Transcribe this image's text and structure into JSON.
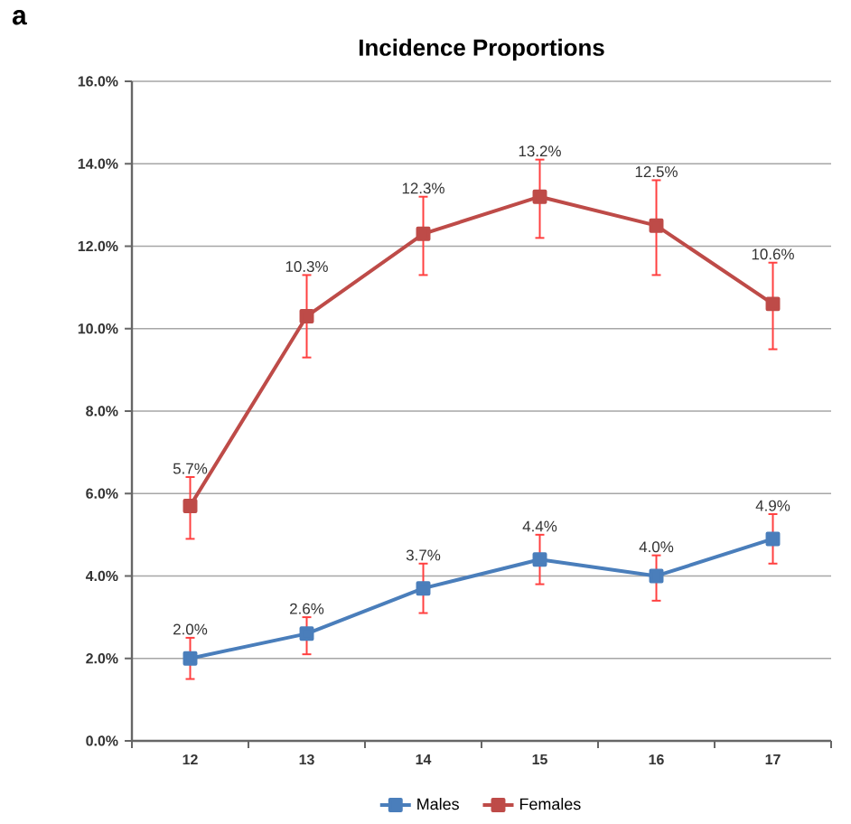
{
  "chart_data": {
    "type": "line",
    "title": "Incidence Proportions",
    "annotations": [
      "a"
    ],
    "categories": [
      "12",
      "13",
      "14",
      "15",
      "16",
      "17"
    ],
    "series": [
      {
        "name": "Males",
        "color": "#4a7ebb",
        "values": [
          2.0,
          2.6,
          3.7,
          4.4,
          4.0,
          4.9
        ],
        "value_labels": [
          "2.0%",
          "2.6%",
          "3.7%",
          "4.4%",
          "4.0%",
          "4.9%"
        ],
        "errors": [
          [
            1.5,
            2.5
          ],
          [
            2.1,
            3.0
          ],
          [
            3.1,
            4.3
          ],
          [
            3.8,
            5.0
          ],
          [
            3.4,
            4.5
          ],
          [
            4.3,
            5.5
          ]
        ]
      },
      {
        "name": "Females",
        "color": "#be4b48",
        "values": [
          5.7,
          10.3,
          12.3,
          13.2,
          12.5,
          10.6
        ],
        "value_labels": [
          "5.7%",
          "10.3%",
          "12.3%",
          "13.2%",
          "12.5%",
          "10.6%"
        ],
        "errors": [
          [
            4.9,
            6.4
          ],
          [
            9.3,
            11.3
          ],
          [
            11.3,
            13.2
          ],
          [
            12.2,
            14.1
          ],
          [
            11.3,
            13.6
          ],
          [
            9.5,
            11.6
          ]
        ]
      }
    ],
    "ylim": [
      0,
      16
    ],
    "yticks": [
      {
        "value": 0,
        "label": "0.0%"
      },
      {
        "value": 2,
        "label": "2.0%"
      },
      {
        "value": 4,
        "label": "4.0%"
      },
      {
        "value": 6,
        "label": "6.0%"
      },
      {
        "value": 8,
        "label": "8.0%"
      },
      {
        "value": 10,
        "label": "10.0%"
      },
      {
        "value": 12,
        "label": "12.0%"
      },
      {
        "value": 14,
        "label": "14.0%"
      },
      {
        "value": 16,
        "label": "16.0%"
      }
    ],
    "grid": "y",
    "legend": "bottom",
    "marker": "square",
    "line_style": "solid"
  }
}
